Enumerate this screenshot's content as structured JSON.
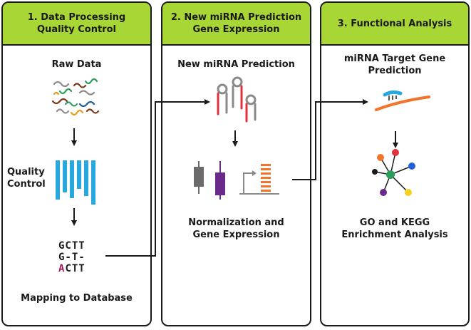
{
  "panels": [
    {
      "header_line1": "1. Data Processing",
      "header_line2": "Quality Control",
      "steps": {
        "raw_data": "Raw Data",
        "quality_control_line1": "Quality",
        "quality_control_line2": "Control",
        "mapping": "Mapping to Database"
      },
      "alignment": {
        "row1": "GCTT",
        "row2": "G-T-",
        "row3_highlight": "A",
        "row3_rest": "CTT"
      }
    },
    {
      "header_line1": "2. New miRNA Prediction",
      "header_line2": "Gene Expression",
      "steps": {
        "prediction": "New miRNA Prediction",
        "normalization_line1": "Normalization and",
        "normalization_line2": "Gene Expression"
      }
    },
    {
      "header_line1": "3. Functional Analysis",
      "steps": {
        "target_line1": "miRNA Target Gene",
        "target_line2": "Prediction",
        "enrichment_line1": "GO and KEGG",
        "enrichment_line2": "Enrichment Analysis"
      }
    }
  ],
  "colors": {
    "header_green": "#a8d735",
    "border": "#1a1a1a",
    "qc_blue": "#29a8e0",
    "hairpin_red": "#e0303a",
    "hairpin_gray": "#8a8a8a",
    "bar_purple": "#6a2a8c",
    "bar_orange": "#f2732a",
    "highlight_base": "#a0195c"
  },
  "icons": [
    "reads-icon",
    "quality-bars-icon",
    "hairpin-icon",
    "boxplot-icon",
    "histogram-icon",
    "target-binding-icon",
    "network-icon"
  ]
}
